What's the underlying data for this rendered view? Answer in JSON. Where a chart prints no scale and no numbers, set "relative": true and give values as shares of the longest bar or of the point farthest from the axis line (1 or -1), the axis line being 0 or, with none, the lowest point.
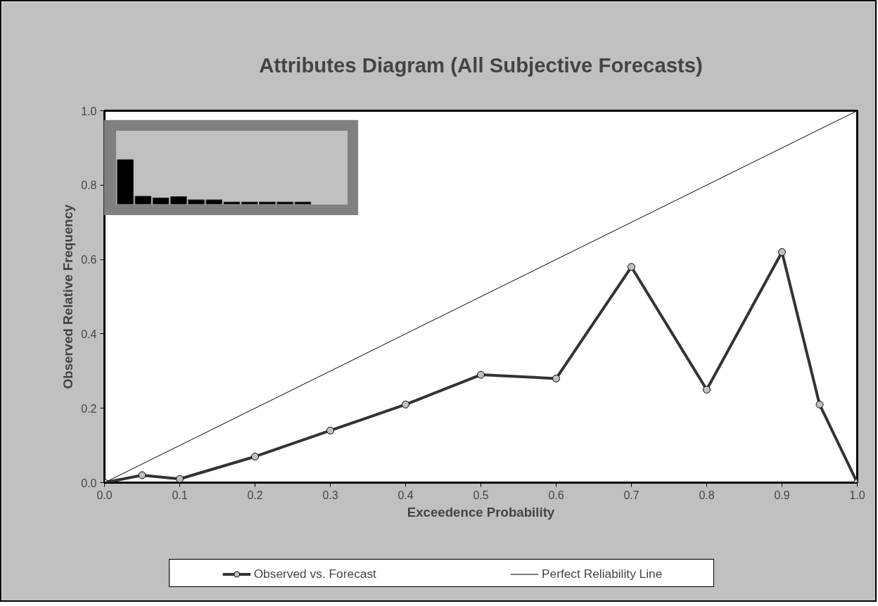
{
  "chart_data": [
    {
      "type": "line",
      "title": "Attributes Diagram (All Subjective Forecasts)",
      "xlabel": "Exceedence Probability",
      "ylabel": "Observed Relative Frequency",
      "xlim": [
        0,
        1
      ],
      "ylim": [
        0,
        1
      ],
      "xticks": [
        {
          "value": 0,
          "label": "0.0"
        },
        {
          "value": 0.1,
          "label": "0.1"
        },
        {
          "value": 0.2,
          "label": "0.2"
        },
        {
          "value": 0.3,
          "label": "0.3"
        },
        {
          "value": 0.4,
          "label": "0.4"
        },
        {
          "value": 0.5,
          "label": "0.5"
        },
        {
          "value": 0.6,
          "label": "0.6"
        },
        {
          "value": 0.7,
          "label": "0.7"
        },
        {
          "value": 0.8,
          "label": "0.8"
        },
        {
          "value": 0.9,
          "label": "0.9"
        },
        {
          "value": 1,
          "label": "1.0"
        }
      ],
      "yticks": [
        {
          "value": 0,
          "label": "0.0"
        },
        {
          "value": 0.2,
          "label": "0.2"
        },
        {
          "value": 0.4,
          "label": "0.4"
        },
        {
          "value": 0.6,
          "label": "0.6"
        },
        {
          "value": 0.8,
          "label": "0.8"
        },
        {
          "value": 1,
          "label": "1.0"
        }
      ],
      "grid": false,
      "legend": "bottom",
      "series": [
        {
          "name": "Observed vs. Forecast",
          "color": "#333333",
          "marker": "circle",
          "line_style": "solid",
          "x": [
            0,
            0.05,
            0.1,
            0.2,
            0.3,
            0.4,
            0.5,
            0.6,
            0.7,
            0.8,
            0.9,
            0.95,
            1
          ],
          "values": [
            0,
            0.02,
            0.01,
            0.07,
            0.14,
            0.21,
            0.29,
            0.28,
            0.58,
            0.25,
            0.62,
            0.21,
            0
          ]
        },
        {
          "name": "Perfect Reliability Line",
          "color": "#000000",
          "line_style": "solid",
          "x": [
            0,
            1
          ],
          "values": [
            0,
            1
          ]
        }
      ]
    },
    {
      "type": "bar",
      "relative": true,
      "categories": [
        null,
        null,
        null,
        null,
        null,
        null,
        null,
        null,
        null,
        null,
        null
      ],
      "values": [
        1,
        0.18,
        0.14,
        0.17,
        0.1,
        0.1,
        0.05,
        0.05,
        0.05,
        0.05,
        0.05
      ],
      "color": "#000000",
      "grid": false
    }
  ]
}
